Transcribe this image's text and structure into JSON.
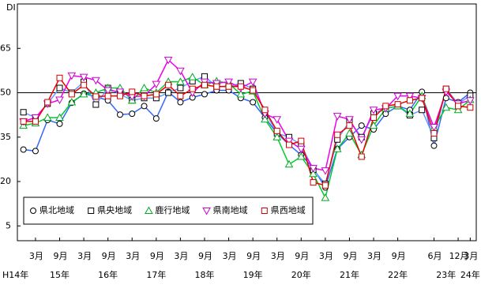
{
  "chart_data": {
    "type": "line",
    "y_label": "DI",
    "categories": [
      null,
      "3月",
      null,
      "9月",
      null,
      "3月",
      null,
      "9月",
      null,
      "3月",
      null,
      "9月",
      null,
      "3月",
      null,
      "9月",
      null,
      "3月",
      null,
      "9月",
      null,
      "3月",
      null,
      "9月",
      null,
      "3月",
      null,
      "9月",
      null,
      "3月",
      null,
      "9月",
      null,
      null,
      "6月",
      null,
      "12月",
      "3月"
    ],
    "year_labels": [
      "H14年",
      null,
      null,
      "15年",
      null,
      null,
      null,
      "16年",
      null,
      null,
      null,
      "17年",
      null,
      null,
      null,
      "18年",
      null,
      null,
      null,
      "19年",
      null,
      null,
      null,
      "20年",
      null,
      null,
      null,
      "21年",
      null,
      null,
      null,
      "22年",
      null,
      null,
      null,
      "23年",
      null,
      "24年"
    ],
    "series": [
      {
        "name": "県北地域",
        "color": "#3366ff",
        "marker": "circle",
        "marker_color": "#000000",
        "values": [
          30.8,
          30.3,
          40.8,
          39.5,
          46.6,
          49.7,
          48.7,
          47.4,
          42.6,
          42.9,
          45.5,
          41.3,
          50.3,
          46.8,
          48.4,
          49.5,
          50.8,
          50.8,
          48.2,
          46.8,
          41.6,
          36.3,
          32.4,
          29,
          24.5,
          18,
          31,
          35,
          38.9,
          37.6,
          42.9,
          45.5,
          44.2,
          50.3,
          32.1,
          48.2,
          46.8,
          50
        ]
      },
      {
        "name": "県央地域",
        "color": "#6699ff",
        "marker": "square",
        "marker_color": "#000000",
        "values": [
          43.4,
          41.6,
          46.3,
          51.6,
          50,
          53.7,
          46,
          51.6,
          49.5,
          47.4,
          48.2,
          48.2,
          50,
          51.6,
          53.9,
          55.5,
          52.1,
          52.1,
          53.2,
          51.3,
          43.7,
          36.3,
          35,
          32.4,
          24,
          19.2,
          34.2,
          40.3,
          35,
          42.9,
          44.7,
          45.5,
          42.4,
          44.2,
          34.7,
          51.3,
          46.3,
          49
        ]
      },
      {
        "name": "鹿行地域",
        "color": "#00cc33",
        "marker": "triangle",
        "marker_color": "#00aa22",
        "values": [
          38.9,
          39.7,
          41.6,
          41.6,
          46.8,
          49.5,
          50,
          51.6,
          51.6,
          47.4,
          51.6,
          50,
          53.7,
          53.7,
          55.3,
          52.6,
          53.9,
          53.2,
          49.5,
          50.5,
          41,
          35,
          25.8,
          28.4,
          22.6,
          14.5,
          31,
          36.3,
          29,
          38.9,
          44.7,
          45.5,
          42.9,
          48.9,
          38.2,
          45,
          44.2,
          47.6
        ]
      },
      {
        "name": "県南地域",
        "color": "#ee00ee",
        "marker": "triangle-down",
        "marker_color": "#cc00cc",
        "values": [
          40.3,
          41.6,
          46.3,
          47.6,
          55.8,
          55.3,
          54.2,
          50.8,
          50.3,
          48.7,
          48.9,
          52.9,
          61.1,
          57.4,
          50,
          53.7,
          53.2,
          53.7,
          51.6,
          53.7,
          42.9,
          41,
          33.7,
          31,
          24.5,
          23.7,
          42.1,
          41,
          34.2,
          44.2,
          44.7,
          48.9,
          48.9,
          48.2,
          38.4,
          50.3,
          46.3,
          47.4
        ]
      },
      {
        "name": "県西地域",
        "color": "#ee0000",
        "marker": "square",
        "marker_color": "#cc0000",
        "values": [
          40.3,
          40.3,
          46.8,
          55,
          49.5,
          52.6,
          48.7,
          48.9,
          48.9,
          50.3,
          48.9,
          49.5,
          52.6,
          48.9,
          51.3,
          52.6,
          52.1,
          52.1,
          52.1,
          50.8,
          44.2,
          37.1,
          32.4,
          33.7,
          19.7,
          18.7,
          35.8,
          38.9,
          28.4,
          41.6,
          45.5,
          46.1,
          47.4,
          48.2,
          36.3,
          51.3,
          45.5,
          45
        ]
      }
    ],
    "ylim": [
      0,
      80
    ],
    "yticks": [
      5,
      20,
      35,
      50,
      65
    ],
    "reference_line": 50,
    "legend": "lower left"
  }
}
